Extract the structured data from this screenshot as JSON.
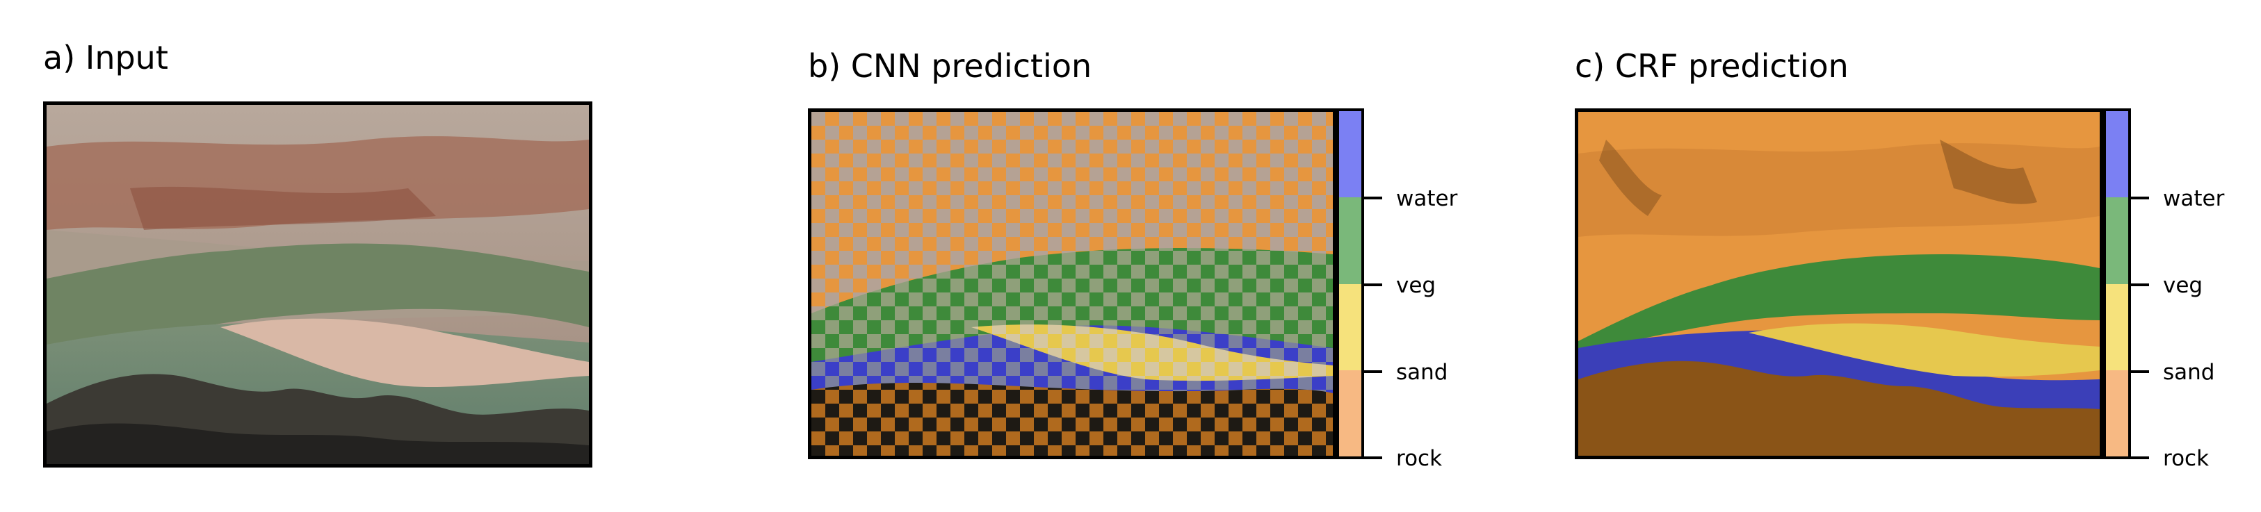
{
  "panels": {
    "input": {
      "title": "a) Input"
    },
    "cnn": {
      "title": "b) CNN prediction"
    },
    "crf": {
      "title": "c) CRF prediction"
    }
  },
  "colorbar": {
    "classes": [
      {
        "label": "water",
        "color": "#7b80f3"
      },
      {
        "label": "veg",
        "color": "#7ab87a"
      },
      {
        "label": "sand",
        "color": "#f6e27c"
      },
      {
        "label": "rock",
        "color": "#f7b983"
      }
    ]
  },
  "colors": {
    "rock_overlay": "#e6963f",
    "veg_overlay": "#3e8a3a",
    "sand_overlay": "#e6c84e",
    "water_overlay": "#3b3fb8",
    "dark_rock_overlay": "#8a5417"
  }
}
